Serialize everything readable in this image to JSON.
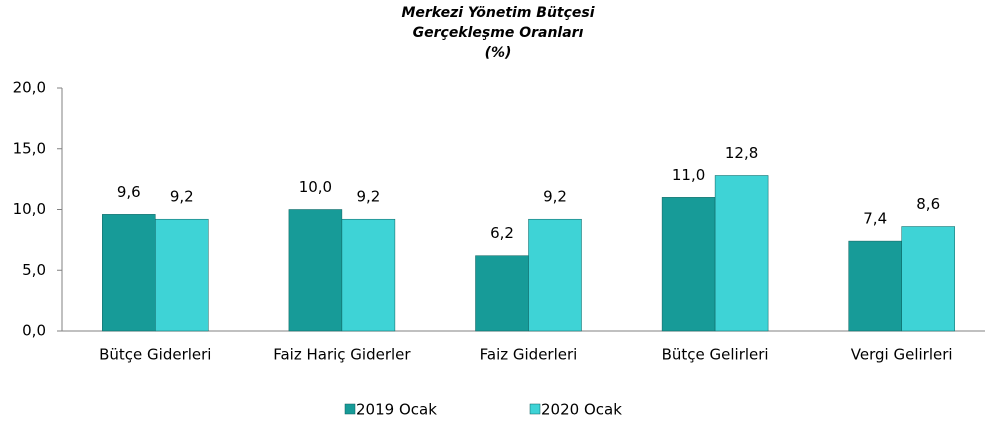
{
  "chart_data": {
    "type": "bar",
    "title": [
      "Merkezi Yönetim Bütçesi",
      "Gerçekleşme Oranları",
      "(%)"
    ],
    "categories": [
      "Bütçe Giderleri",
      "Faiz Hariç Giderler",
      "Faiz Giderleri",
      "Bütçe Gelirleri",
      "Vergi Gelirleri"
    ],
    "series": [
      {
        "name": "2019  Ocak",
        "color": "#179b98",
        "values": [
          9.6,
          10.0,
          6.2,
          11.0,
          7.4
        ],
        "value_labels": [
          "9,6",
          "10,0",
          "6,2",
          "11,0",
          "7,4"
        ]
      },
      {
        "name": "2020  Ocak",
        "color": "#3ed3d6",
        "values": [
          9.2,
          9.2,
          9.2,
          12.8,
          8.6
        ],
        "value_labels": [
          "9,2",
          "9,2",
          "9,2",
          "12,8",
          "8,6"
        ]
      }
    ],
    "ylim": [
      0,
      20
    ],
    "yticks": [
      {
        "value": 0,
        "label": "0,0"
      },
      {
        "value": 5,
        "label": "5,0"
      },
      {
        "value": 10,
        "label": "10,0"
      },
      {
        "value": 15,
        "label": "15,0"
      },
      {
        "value": 20,
        "label": "20,0"
      }
    ],
    "legend": "bottom"
  }
}
